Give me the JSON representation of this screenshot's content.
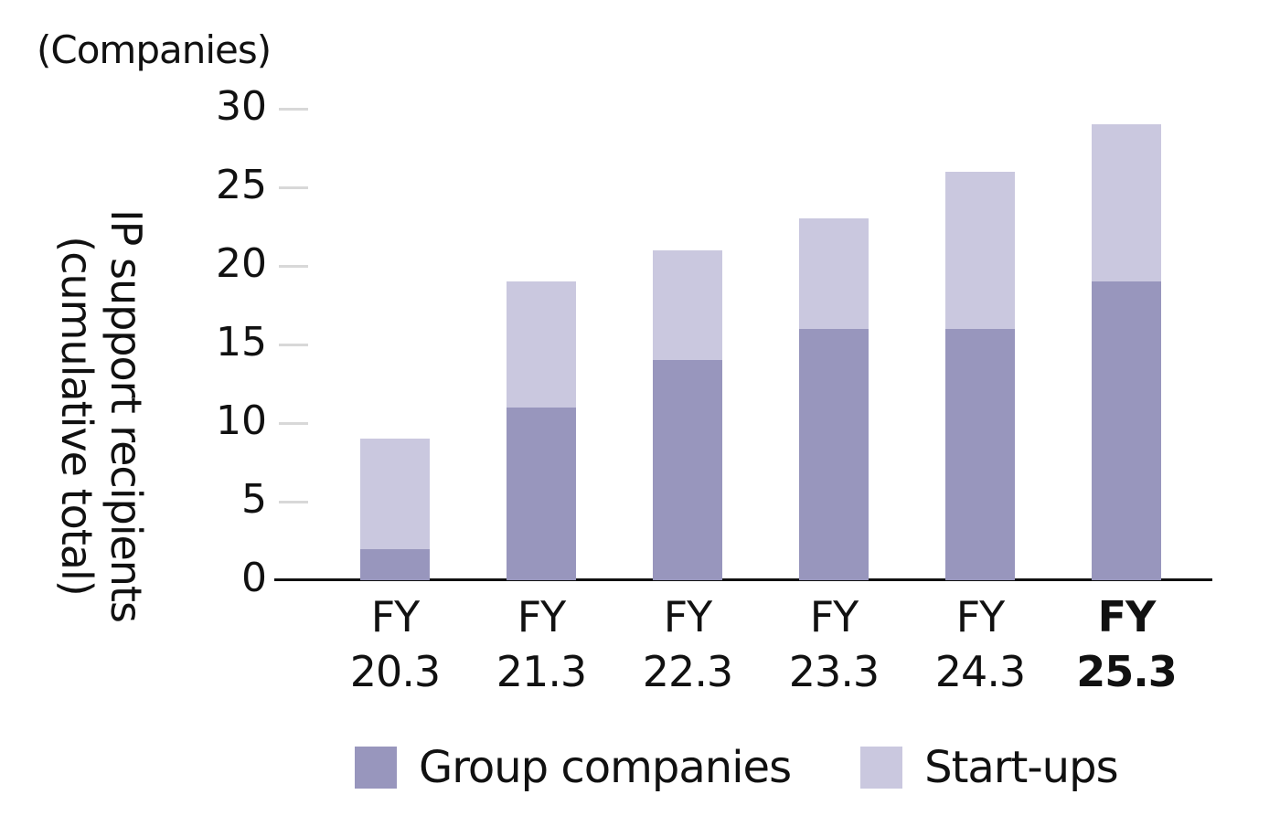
{
  "chart_data": {
    "type": "bar",
    "stacked": true,
    "title": "",
    "unit_label": "(Companies)",
    "ylabel": "IP support recipients (cumulative total)",
    "ylabel_lines": [
      "IP support recipients",
      "(cumulative total)"
    ],
    "xlabel": "",
    "ylim": [
      0,
      30
    ],
    "yticks": [
      0,
      5,
      10,
      15,
      20,
      25,
      30
    ],
    "grid": false,
    "legend_position": "bottom",
    "categories": [
      "FY20.3",
      "FY21.3",
      "FY22.3",
      "FY23.3",
      "FY24.3",
      "FY25.3"
    ],
    "category_lines": [
      [
        "FY",
        "20.3"
      ],
      [
        "FY",
        "21.3"
      ],
      [
        "FY",
        "22.3"
      ],
      [
        "FY",
        "23.3"
      ],
      [
        "FY",
        "24.3"
      ],
      [
        "FY",
        "25.3"
      ]
    ],
    "highlighted_category": "FY25.3",
    "series": [
      {
        "name": "Group companies",
        "color": "#9896bd",
        "values": [
          2,
          11,
          14,
          16,
          16,
          19
        ]
      },
      {
        "name": "Start-ups",
        "color": "#cac8df",
        "values": [
          7,
          8,
          7,
          7,
          10,
          10
        ]
      }
    ],
    "totals": [
      9,
      19,
      21,
      23,
      26,
      29
    ]
  }
}
